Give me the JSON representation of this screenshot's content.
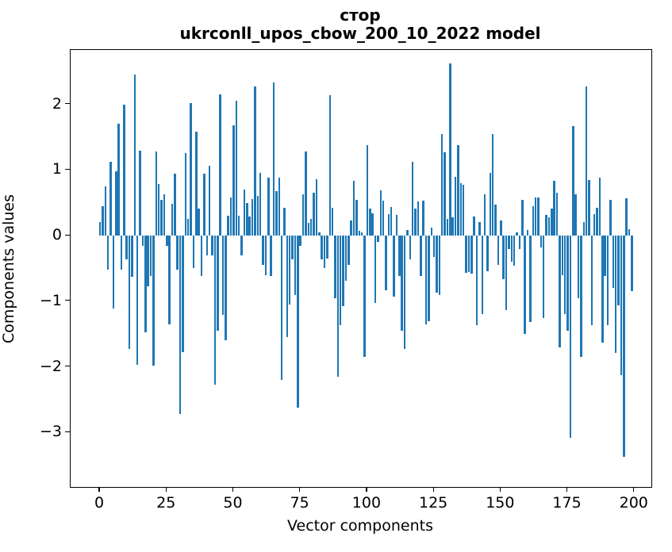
{
  "title_line1": "стор",
  "title_line2": "ukrconll_upos_cbow_200_10_2022 model",
  "xlabel": "Vector components",
  "ylabel": "Components values",
  "chart_data": {
    "type": "bar",
    "title": "стор",
    "subtitle": "ukrconll_upos_cbow_200_10_2022 model",
    "xlabel": "Vector components",
    "ylabel": "Components values",
    "bar_color": "#1f77b4",
    "grid": false,
    "legend": false,
    "n_components": 200,
    "x_ticks": [
      0,
      25,
      50,
      75,
      100,
      125,
      150,
      175,
      200
    ],
    "y_ticks": [
      2,
      1,
      0,
      -1,
      -2,
      -3
    ],
    "xlim": [
      -11,
      206.3
    ],
    "ylim": [
      -3.83,
      2.83
    ],
    "values": [
      0.21,
      0.45,
      0.75,
      -0.52,
      1.12,
      -1.11,
      0.98,
      1.7,
      -0.52,
      2.0,
      -0.36,
      -1.73,
      -0.63,
      2.45,
      -1.97,
      1.3,
      -0.15,
      -1.47,
      -0.77,
      -0.62,
      -1.98,
      1.28,
      0.79,
      0.55,
      0.63,
      -0.15,
      -1.35,
      0.49,
      0.95,
      -0.52,
      -2.72,
      -1.77,
      1.26,
      0.25,
      2.02,
      -0.5,
      1.58,
      0.41,
      -0.62,
      0.95,
      -0.3,
      1.06,
      -0.3,
      -2.27,
      -1.45,
      2.15,
      -1.21,
      -1.6,
      0.3,
      0.58,
      1.68,
      2.06,
      0.3,
      -0.3,
      0.7,
      0.5,
      0.29,
      0.56,
      2.28,
      0.61,
      0.96,
      -0.44,
      -0.6,
      0.89,
      -0.62,
      2.33,
      0.68,
      0.89,
      -2.2,
      0.43,
      -1.55,
      -1.05,
      -0.36,
      -0.9,
      -2.62,
      -0.15,
      0.63,
      1.28,
      0.19,
      0.25,
      0.65,
      0.86,
      0.05,
      -0.36,
      -0.5,
      -0.35,
      2.14,
      0.43,
      -0.95,
      -2.15,
      -1.37,
      -1.07,
      -0.69,
      -0.44,
      0.23,
      0.83,
      0.55,
      0.07,
      0.05,
      -1.85,
      1.38,
      0.41,
      0.34,
      -1.03,
      -0.1,
      0.69,
      0.53,
      -0.83,
      0.33,
      0.44,
      -0.93,
      0.31,
      -0.62,
      -1.45,
      -1.73,
      0.09,
      -0.36,
      1.12,
      0.41,
      0.52,
      -0.62,
      0.53,
      -1.35,
      -1.3,
      0.12,
      -0.32,
      -0.87,
      -0.9,
      1.55,
      1.27,
      0.25,
      2.62,
      0.28,
      0.9,
      1.38,
      0.8,
      0.78,
      -0.57,
      -0.56,
      -0.58,
      0.29,
      -1.37,
      0.21,
      -1.19,
      0.63,
      -0.54,
      0.96,
      1.55,
      0.47,
      -0.44,
      0.23,
      -0.66,
      -1.14,
      -0.21,
      -0.4,
      -0.46,
      0.05,
      -0.21,
      0.55,
      -1.5,
      0.09,
      -1.32,
      0.45,
      0.58,
      0.58,
      -0.18,
      -1.25,
      0.31,
      0.28,
      0.41,
      0.83,
      0.65,
      -1.7,
      -0.6,
      -1.2,
      -1.45,
      -3.08,
      1.67,
      0.63,
      -0.95,
      -1.85,
      0.21,
      2.28,
      0.85,
      -1.37,
      0.33,
      0.43,
      0.88,
      -1.63,
      -0.62,
      -1.37,
      0.55,
      -0.8,
      -1.79,
      -1.06,
      -2.13,
      -3.37,
      0.57,
      0.1,
      -0.85
    ]
  }
}
